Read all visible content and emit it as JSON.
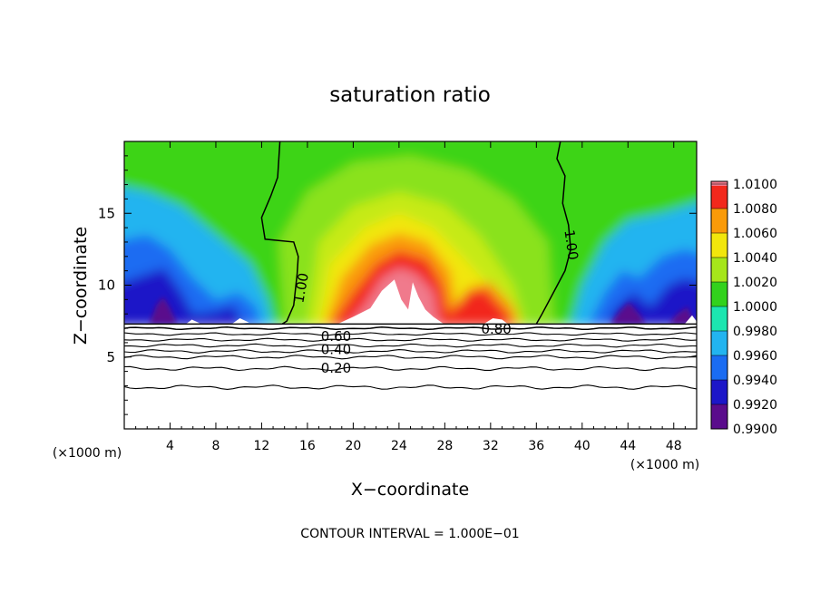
{
  "chart_data": {
    "type": "heatmap",
    "title": "saturation ratio",
    "xlabel": "X−coordinate",
    "ylabel": "Z−coordinate",
    "x_unit_left": "(×1000 m)",
    "x_unit_right": "(×1000 m)",
    "footer": "CONTOUR INTERVAL = 1.000E−01",
    "xlim": [
      0,
      50
    ],
    "ylim": [
      0,
      20
    ],
    "x_ticks": [
      4,
      8,
      12,
      16,
      20,
      24,
      28,
      32,
      36,
      40,
      44,
      48
    ],
    "y_ticks": [
      5,
      10,
      15
    ],
    "colorbar": {
      "levels": [
        0.99,
        0.992,
        0.994,
        0.996,
        0.998,
        1.0,
        1.002,
        1.004,
        1.006,
        1.008,
        1.01
      ],
      "tick_labels": [
        "0.9900",
        "0.9920",
        "0.9940",
        "0.9960",
        "0.9980",
        "1.0000",
        "1.0020",
        "1.0040",
        "1.0060",
        "1.0080",
        "1.0100"
      ],
      "colors": [
        "#5a0c8c",
        "#1c16c8",
        "#1a6cf2",
        "#22b4f0",
        "#1ce6b0",
        "#32d21c",
        "#a6e61a",
        "#f2e60c",
        "#fa9a08",
        "#f2281c",
        "#f07a8c"
      ]
    },
    "contour_labels": [
      {
        "text": "1.00",
        "x": 15.5,
        "y": 9.8
      },
      {
        "text": "1.00",
        "x": 39.0,
        "y": 12.8
      },
      {
        "text": "0.80",
        "x": 32.5,
        "y": 6.9
      },
      {
        "text": "0.60",
        "x": 18.5,
        "y": 6.4
      },
      {
        "text": "0.40",
        "x": 18.5,
        "y": 5.5
      },
      {
        "text": "0.20",
        "x": 18.5,
        "y": 4.2
      }
    ],
    "low_level_contours": [
      {
        "value": 0.8,
        "z": 7.0
      },
      {
        "value": 0.7,
        "z": 6.6
      },
      {
        "value": 0.6,
        "z": 6.2
      },
      {
        "value": 0.5,
        "z": 5.8
      },
      {
        "value": 0.4,
        "z": 5.4
      },
      {
        "value": 0.3,
        "z": 5.0
      },
      {
        "value": 0.2,
        "z": 4.2
      },
      {
        "value": 0.1,
        "z": 2.9
      }
    ],
    "cloud_base_z": 7.3
  }
}
